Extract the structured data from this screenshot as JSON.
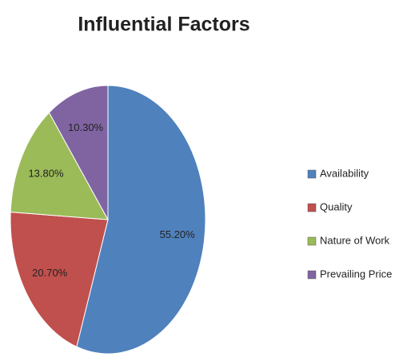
{
  "chart_data": {
    "type": "pie",
    "title": "Influential Factors",
    "categories": [
      "Availability",
      "Quality",
      "Nature of Work",
      "Prevailing Price"
    ],
    "values": [
      55.2,
      20.7,
      13.8,
      10.3
    ],
    "value_labels": [
      "55.20%",
      "20.70%",
      "13.80%",
      "10.30%"
    ],
    "colors": [
      "#4f81bd",
      "#c0504d",
      "#9bbb59",
      "#8064a2"
    ],
    "legend": "right"
  }
}
